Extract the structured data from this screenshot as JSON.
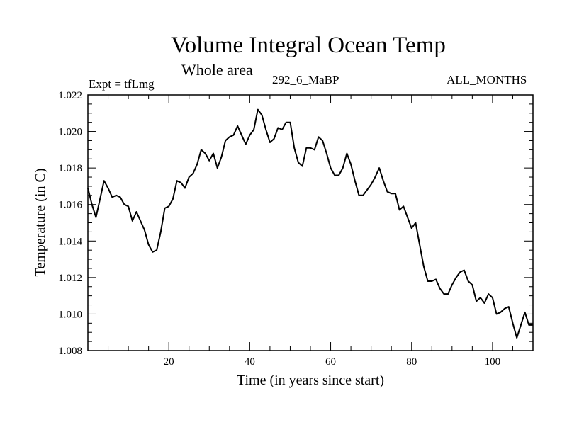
{
  "chart_data": {
    "type": "line",
    "title": "Volume Integral Ocean Temp",
    "subtitle": "Whole area",
    "annotations": {
      "left": "Expt = tfLmg",
      "center": "292_6_MaBP",
      "right": "ALL_MONTHS"
    },
    "xlabel": "Time (in years since start)",
    "ylabel": "Temperature (in C)",
    "xlim": [
      0,
      110
    ],
    "ylim": [
      1.008,
      1.022
    ],
    "xticks_major": [
      20,
      40,
      60,
      80,
      100
    ],
    "xtick_labels": [
      "20",
      "40",
      "60",
      "80",
      "100"
    ],
    "yticks_major": [
      1.008,
      1.01,
      1.012,
      1.014,
      1.016,
      1.018,
      1.02,
      1.022
    ],
    "ytick_labels": [
      "1.008",
      "1.010",
      "1.012",
      "1.014",
      "1.016",
      "1.018",
      "1.020",
      "1.022"
    ],
    "grid": false,
    "series": [
      {
        "name": "Volume Integral Ocean Temp",
        "color": "#000000",
        "x": [
          0,
          1,
          2,
          3,
          4,
          5,
          6,
          7,
          8,
          9,
          10,
          11,
          12,
          13,
          14,
          15,
          16,
          17,
          18,
          19,
          20,
          21,
          22,
          23,
          24,
          25,
          26,
          27,
          28,
          29,
          30,
          31,
          32,
          33,
          34,
          35,
          36,
          37,
          38,
          39,
          40,
          41,
          42,
          43,
          44,
          45,
          46,
          47,
          48,
          49,
          50,
          51,
          52,
          53,
          54,
          55,
          56,
          57,
          58,
          59,
          60,
          61,
          62,
          63,
          64,
          65,
          66,
          67,
          68,
          69,
          70,
          71,
          72,
          73,
          74,
          75,
          76,
          77,
          78,
          79,
          80,
          81,
          82,
          83,
          84,
          85,
          86,
          87,
          88,
          89,
          90,
          91,
          92,
          93,
          94,
          95,
          96,
          97,
          98,
          99,
          100,
          101,
          102,
          103,
          104,
          105,
          106,
          107,
          108,
          109,
          110
        ],
        "values": [
          1.0169,
          1.016,
          1.0153,
          1.0163,
          1.0173,
          1.0169,
          1.0164,
          1.0165,
          1.0164,
          1.016,
          1.0159,
          1.0151,
          1.0156,
          1.0151,
          1.0146,
          1.0138,
          1.0134,
          1.0135,
          1.0145,
          1.0158,
          1.0159,
          1.0163,
          1.0173,
          1.0172,
          1.0169,
          1.0175,
          1.0177,
          1.0182,
          1.019,
          1.0188,
          1.0184,
          1.0188,
          1.018,
          1.0186,
          1.0195,
          1.0197,
          1.0198,
          1.0203,
          1.0198,
          1.0193,
          1.0198,
          1.0201,
          1.0212,
          1.0209,
          1.0201,
          1.0194,
          1.0196,
          1.0202,
          1.0201,
          1.0205,
          1.0205,
          1.0191,
          1.0183,
          1.0181,
          1.0191,
          1.0191,
          1.019,
          1.0197,
          1.0195,
          1.0188,
          1.018,
          1.0176,
          1.0176,
          1.018,
          1.0188,
          1.0182,
          1.0173,
          1.0165,
          1.0165,
          1.0168,
          1.0171,
          1.0175,
          1.018,
          1.0173,
          1.0167,
          1.0166,
          1.0166,
          1.0157,
          1.0159,
          1.0153,
          1.0147,
          1.015,
          1.0138,
          1.0126,
          1.0118,
          1.0118,
          1.0119,
          1.0114,
          1.0111,
          1.0111,
          1.0116,
          1.012,
          1.0123,
          1.0124,
          1.0118,
          1.0116,
          1.0107,
          1.0109,
          1.0106,
          1.0111,
          1.0109,
          1.01,
          1.0101,
          1.0103,
          1.0104,
          1.0095,
          1.0087,
          1.0094,
          1.0101,
          1.0094,
          1.0094
        ]
      }
    ]
  }
}
